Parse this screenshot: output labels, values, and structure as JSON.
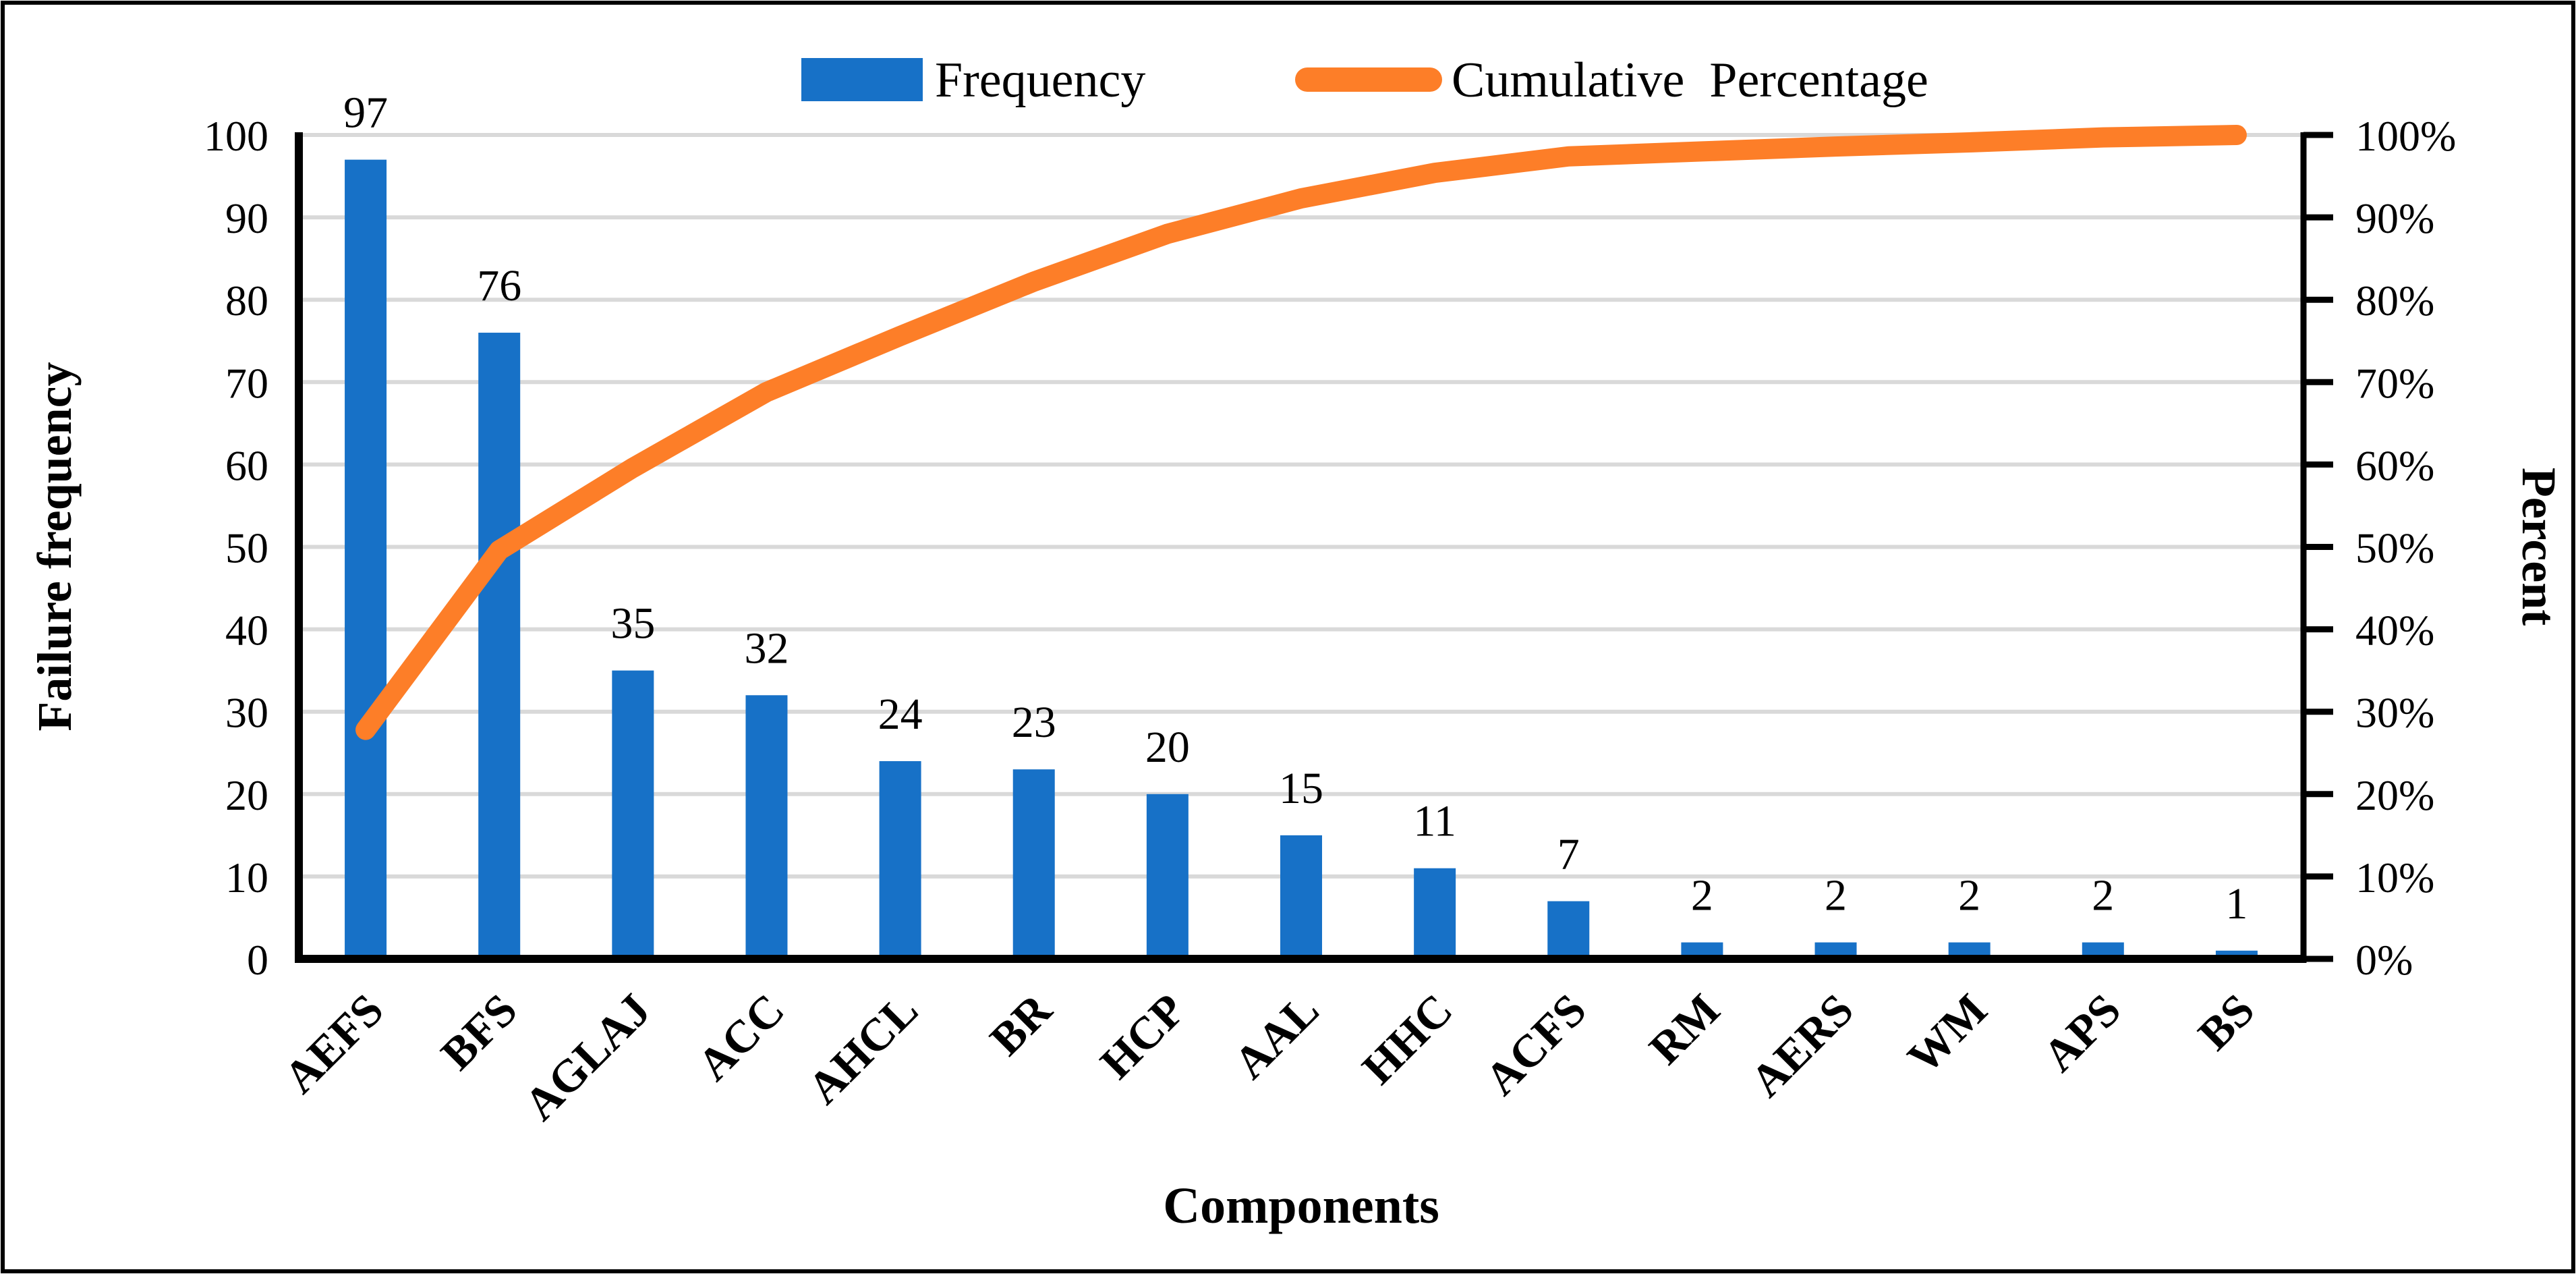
{
  "figure": {
    "background_color": "#FFFFFF",
    "border_color": "#000000"
  },
  "legend": {
    "position": "top-center",
    "items": [
      {
        "label": "Frequency",
        "marker": "bar-swatch",
        "color": "#1771C7"
      },
      {
        "label": "Cumulative  Percentage",
        "marker": "line-swatch",
        "color": "#FD7E28"
      }
    ]
  },
  "chart_data": {
    "type": "pareto (bar + line combo)",
    "title": "",
    "categories": [
      "AEFS",
      "BFS",
      "AGLAJ",
      "ACC",
      "AHCL",
      "BR",
      "HCP",
      "AAL",
      "HHC",
      "ACFS",
      "RM",
      "AERS",
      "WM",
      "APS",
      "BS"
    ],
    "series": [
      {
        "name": "Frequency",
        "type": "bar",
        "axis": "left",
        "color": "#1771C7",
        "values": [
          97,
          76,
          35,
          32,
          24,
          23,
          20,
          15,
          11,
          7,
          2,
          2,
          2,
          2,
          1
        ],
        "data_labels_shown": true
      },
      {
        "name": "Cumulative  Percentage",
        "type": "line",
        "axis": "right",
        "color": "#FD7E28",
        "values_percent": [
          27.8,
          49.6,
          59.6,
          68.8,
          75.6,
          82.2,
          88.0,
          92.3,
          95.4,
          97.4,
          98.0,
          98.6,
          99.1,
          99.7,
          100.0
        ],
        "data_labels_shown": false
      }
    ],
    "x_axis": {
      "title": "Components",
      "tick_label_rotation_deg": -45
    },
    "y_axis_left": {
      "title": "Failure frequency",
      "min": 0,
      "max": 100,
      "step": 10,
      "tick_labels": [
        "0",
        "10",
        "20",
        "30",
        "40",
        "50",
        "60",
        "70",
        "80",
        "90",
        "100"
      ]
    },
    "y_axis_right": {
      "title": "Percent",
      "min": 0,
      "max": 100,
      "step": 10,
      "tick_labels": [
        "0%",
        "10%",
        "20%",
        "30%",
        "40%",
        "50%",
        "60%",
        "70%",
        "80%",
        "90%",
        "100%"
      ]
    },
    "gridlines": {
      "horizontal": true,
      "color": "#D9D9D9"
    },
    "axis_line_color": "#000000"
  }
}
